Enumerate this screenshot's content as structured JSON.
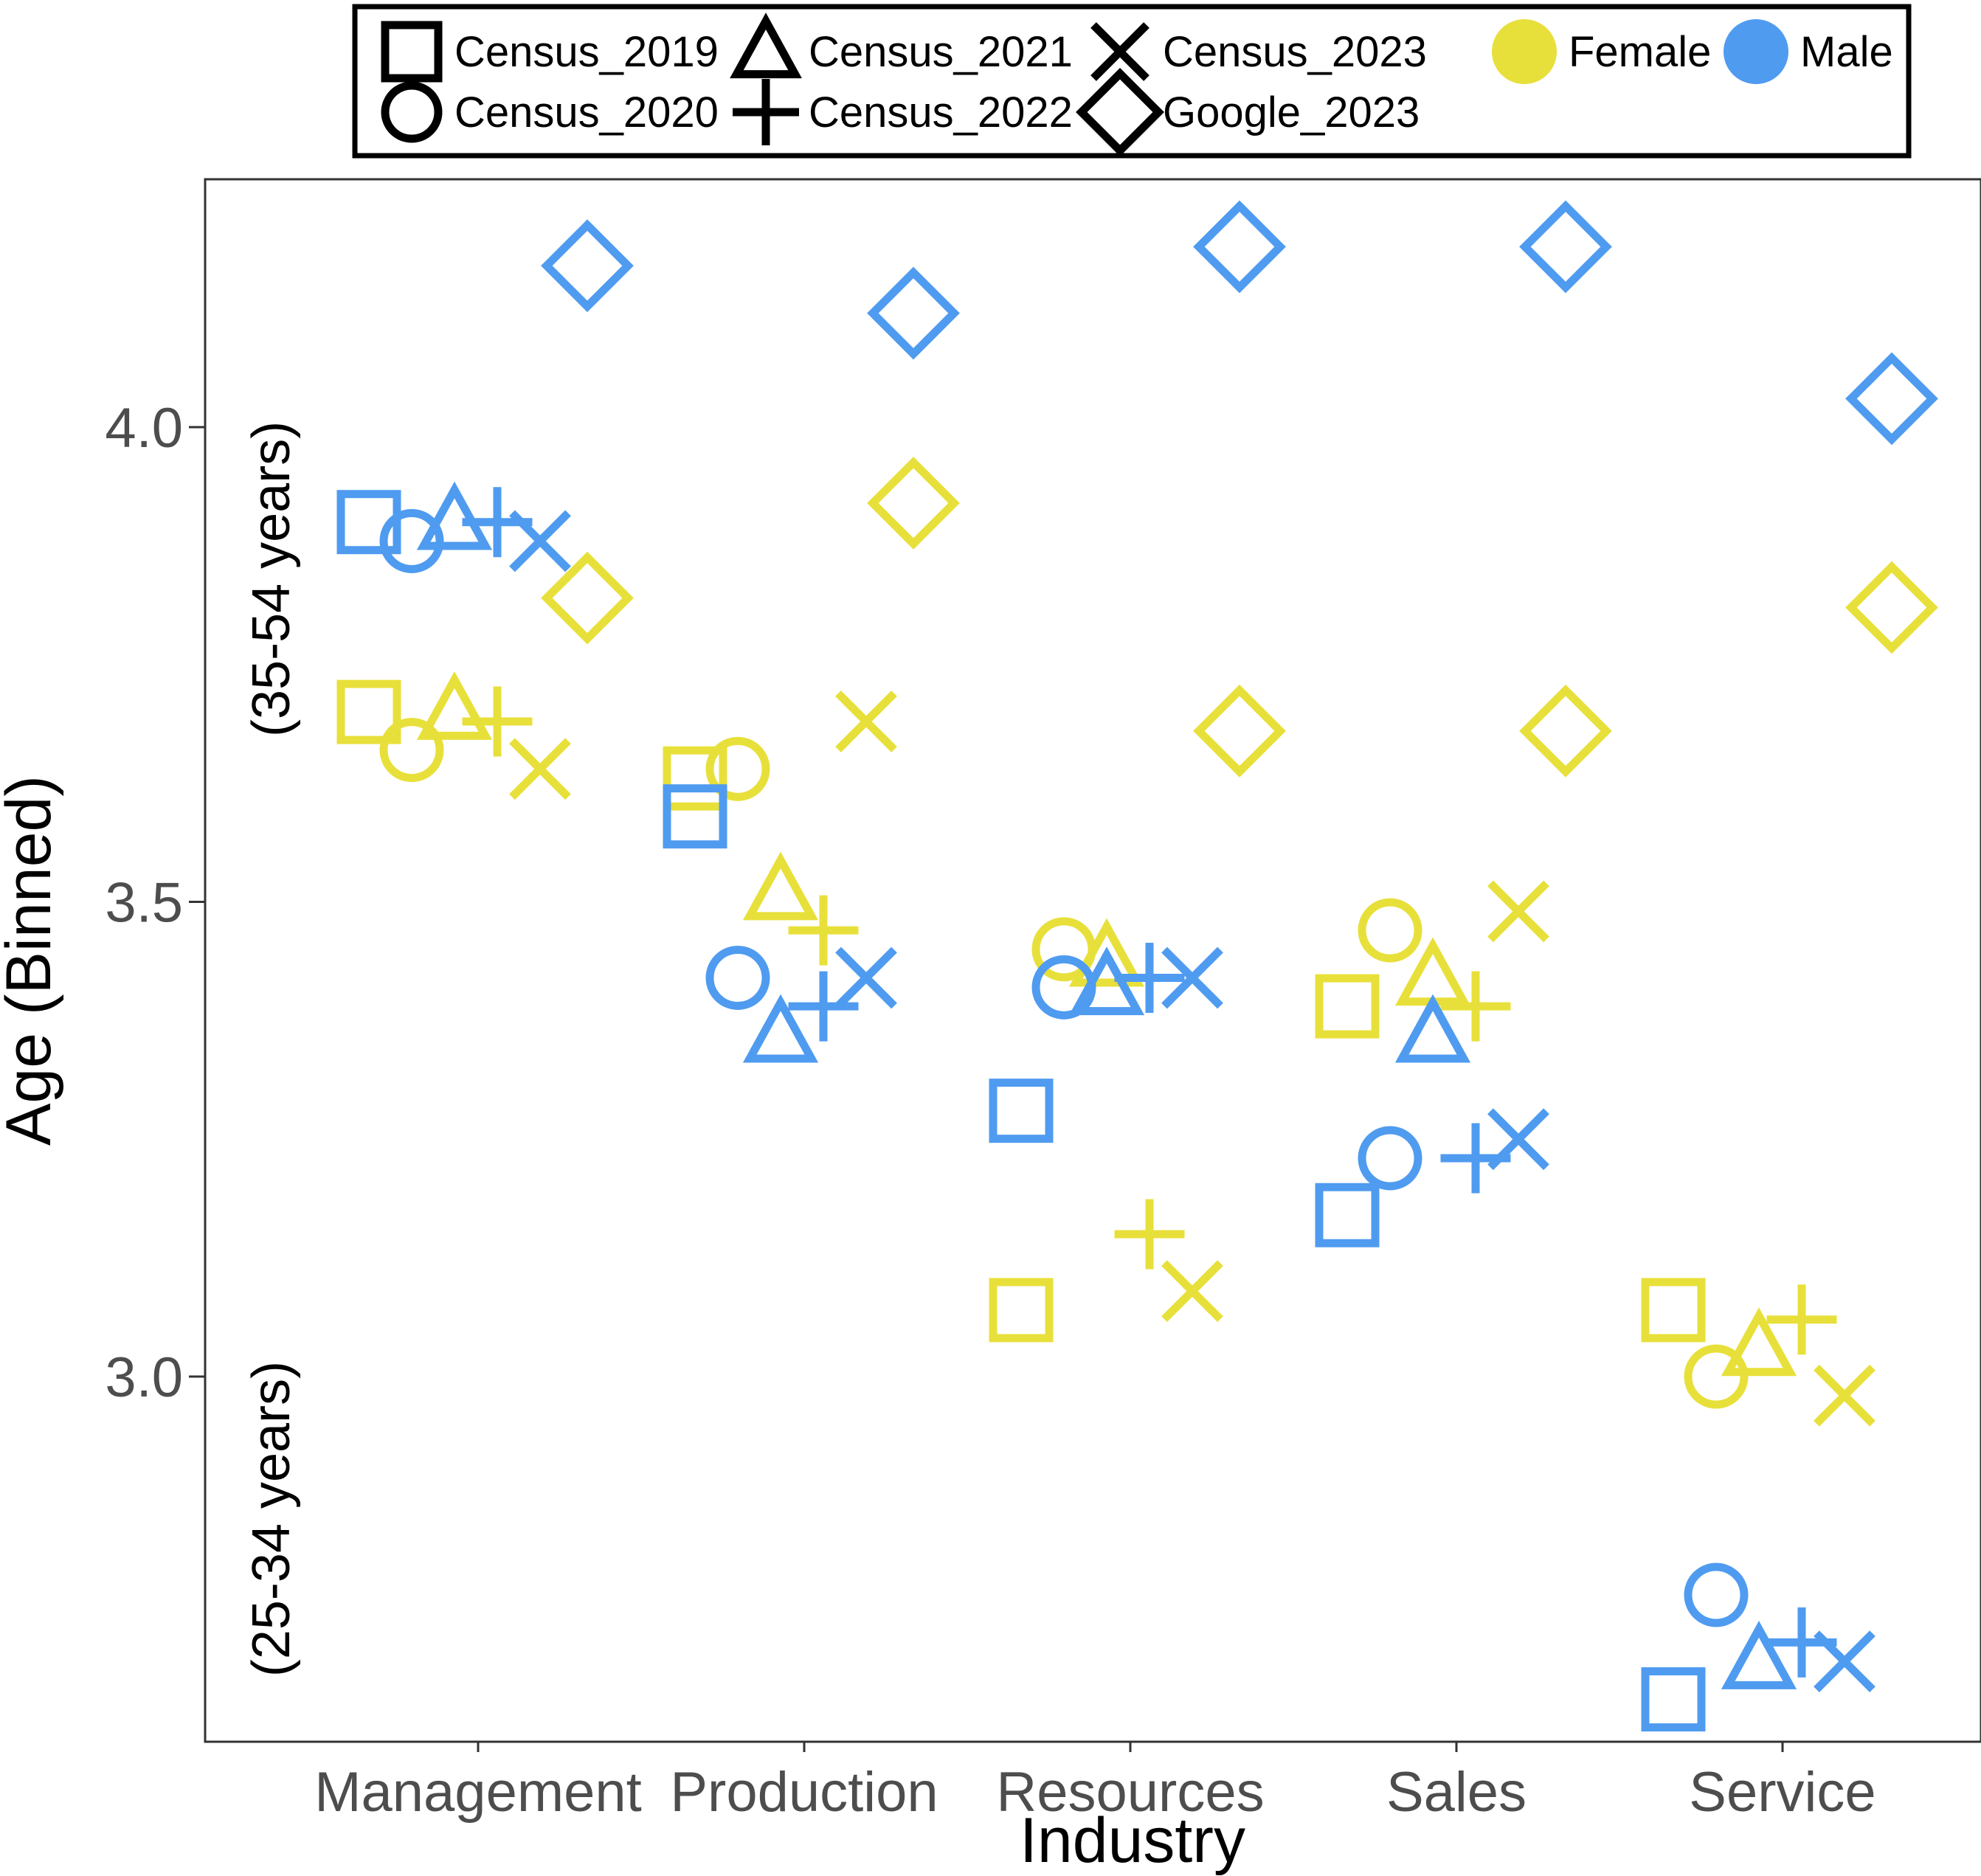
{
  "chart_data": {
    "type": "scatter",
    "title": "",
    "xlabel": "Industry",
    "ylabel": "Age (Binned)",
    "categories": [
      "Management",
      "Production",
      "Resources",
      "Sales",
      "Service"
    ],
    "ylim": [
      2.62,
      4.27
    ],
    "yticks": [
      3.0,
      3.5,
      4.0
    ],
    "ytick_labels": [
      "3.0",
      "3.5",
      "4.0"
    ],
    "band_labels": [
      {
        "text": "(35-54 years)",
        "y": 3.84
      },
      {
        "text": "(25-34 years)",
        "y": 2.85
      }
    ],
    "grid": false,
    "legend_position": "top",
    "shape_legend": [
      {
        "key": "Census_2019",
        "label": "Census_2019",
        "marker": "square"
      },
      {
        "key": "Census_2020",
        "label": "Census_2020",
        "marker": "circle"
      },
      {
        "key": "Census_2021",
        "label": "Census_2021",
        "marker": "triangle"
      },
      {
        "key": "Census_2022",
        "label": "Census_2022",
        "marker": "plus"
      },
      {
        "key": "Census_2023",
        "label": "Census_2023",
        "marker": "cross"
      },
      {
        "key": "Google_2023",
        "label": "Google_2023",
        "marker": "diamond"
      }
    ],
    "color_legend": [
      {
        "key": "Female",
        "label": "Female",
        "color": "#e8e03a"
      },
      {
        "key": "Male",
        "label": "Male",
        "color": "#4f9bf0"
      }
    ],
    "sources": [
      "Census_2019",
      "Census_2020",
      "Census_2021",
      "Census_2022",
      "Census_2023",
      "Google_2023"
    ],
    "series": [
      {
        "name": "Female",
        "values": {
          "Management": [
            3.7,
            3.66,
            3.7,
            3.69,
            3.64,
            3.82
          ],
          "Production": [
            3.63,
            3.64,
            3.51,
            3.47,
            3.69,
            3.92
          ],
          "Resources": [
            3.07,
            3.45,
            3.44,
            3.15,
            3.09,
            3.68
          ],
          "Sales": [
            3.39,
            3.47,
            3.42,
            3.39,
            3.49,
            3.68
          ],
          "Service": [
            3.07,
            3.0,
            3.03,
            3.06,
            2.98,
            3.81
          ]
        }
      },
      {
        "name": "Male",
        "values": {
          "Management": [
            3.9,
            3.88,
            3.9,
            3.9,
            3.88,
            4.17
          ],
          "Production": [
            3.59,
            3.42,
            3.36,
            3.39,
            3.42,
            4.12
          ],
          "Resources": [
            3.28,
            3.41,
            3.41,
            3.42,
            3.42,
            4.19
          ],
          "Sales": [
            3.17,
            3.23,
            3.36,
            3.23,
            3.25,
            4.19
          ],
          "Service": [
            2.66,
            2.77,
            2.7,
            2.72,
            2.7,
            4.03
          ]
        }
      }
    ]
  }
}
